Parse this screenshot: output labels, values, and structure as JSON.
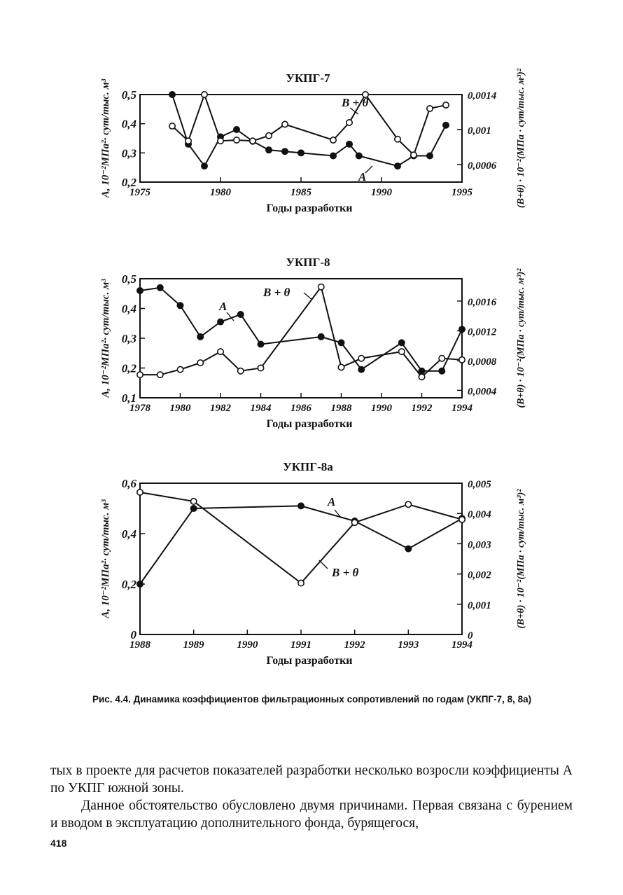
{
  "chart_data": [
    {
      "type": "line",
      "title": "УКПГ-7",
      "xlabel": "Годы разработки",
      "ylabel": "A, 10⁻²МПа²· сут/тыс. м³",
      "y2label": "(B+θ) · 10⁻²(МПа · сут/тыс. м³)²",
      "xlim": [
        1975,
        1995
      ],
      "ylim": [
        0.2,
        0.5
      ],
      "y2lim": [
        0.0004,
        0.0014
      ],
      "x_ticks": [
        "1975",
        "1980",
        "1985",
        "1990",
        "1995"
      ],
      "y_ticks": [
        "0,2",
        "0,3",
        "0,4",
        "0,5"
      ],
      "y2_ticks": [
        "0,0006",
        "0,001",
        "0,0014"
      ],
      "series": [
        {
          "name": "A",
          "axis": "left",
          "marker": "filled",
          "x": [
            1977,
            1978,
            1979,
            1980,
            1981,
            1982,
            1983,
            1984,
            1985,
            1987,
            1988,
            1988.6,
            1991,
            1992,
            1993,
            1994
          ],
          "y": [
            0.5,
            0.33,
            0.255,
            0.355,
            0.38,
            0.34,
            0.31,
            0.305,
            0.3,
            0.29,
            0.33,
            0.29,
            0.255,
            0.29,
            0.29,
            0.395
          ]
        },
        {
          "name": "B + θ",
          "axis": "right",
          "marker": "open",
          "x": [
            1977,
            1978,
            1979,
            1980,
            1981,
            1982,
            1983,
            1984,
            1987,
            1988,
            1989,
            1991,
            1992,
            1993,
            1994
          ],
          "y": [
            0.00104,
            0.00087,
            0.0014,
            0.00087,
            0.00088,
            0.00087,
            0.00093,
            0.00106,
            0.00088,
            0.00108,
            0.0014,
            0.00089,
            0.00071,
            0.00124,
            0.00128
          ]
        }
      ],
      "annotations": [
        "B + θ",
        "A"
      ]
    },
    {
      "type": "line",
      "title": "УКПГ-8",
      "xlabel": "Годы разработки",
      "ylabel": "A, 10⁻²МПа²· сут/тыс. м³",
      "y2label": "(B+θ) · 10⁻²(МПа · сут/тыс. м³)²",
      "xlim": [
        1978,
        1994
      ],
      "ylim": [
        0.1,
        0.5
      ],
      "y2lim": [
        0.0003,
        0.0019
      ],
      "x_ticks": [
        "1978",
        "1980",
        "1982",
        "1984",
        "1986",
        "1988",
        "1990",
        "1992",
        "1994"
      ],
      "y_ticks": [
        "0,1",
        "0,2",
        "0,3",
        "0,4",
        "0,5"
      ],
      "y2_ticks": [
        "0,0004",
        "0,0008",
        "0,0012",
        "0,0016"
      ],
      "series": [
        {
          "name": "A",
          "axis": "left",
          "marker": "filled",
          "x": [
            1978,
            1979,
            1980,
            1981,
            1982,
            1983,
            1984,
            1987,
            1988,
            1989,
            1991,
            1992,
            1993,
            1994
          ],
          "y": [
            0.46,
            0.47,
            0.41,
            0.305,
            0.355,
            0.38,
            0.28,
            0.305,
            0.285,
            0.195,
            0.285,
            0.19,
            0.19,
            0.33
          ]
        },
        {
          "name": "B + θ",
          "axis": "right",
          "marker": "open",
          "x": [
            1978,
            1979,
            1980,
            1981,
            1982,
            1983,
            1984,
            1987,
            1988,
            1989,
            1991,
            1992,
            1993,
            1994
          ],
          "y": [
            0.00061,
            0.00061,
            0.00068,
            0.00077,
            0.00092,
            0.00066,
            0.0007,
            0.00179,
            0.00071,
            0.00083,
            0.00092,
            0.00058,
            0.00083,
            0.00081
          ]
        }
      ],
      "annotations": [
        "B + θ",
        "A"
      ]
    },
    {
      "type": "line",
      "title": "УКПГ-8а",
      "xlabel": "Годы разработки",
      "ylabel": "A, 10⁻²МПа²· сут/тыс. м³",
      "y2label": "(B+θ) · 10⁻²(МПа · сут/тыс. м³)²",
      "xlim": [
        1988,
        1994
      ],
      "ylim": [
        0,
        0.6
      ],
      "y2lim": [
        0,
        0.005
      ],
      "x_ticks": [
        "1988",
        "1989",
        "1990",
        "1991",
        "1992",
        "1993",
        "1994"
      ],
      "y_ticks": [
        "0",
        "0,2",
        "0,4",
        "0,6"
      ],
      "y2_ticks": [
        "0",
        "0,001",
        "0,002",
        "0,003",
        "0,004",
        "0,005"
      ],
      "series": [
        {
          "name": "A",
          "axis": "left",
          "marker": "filled",
          "x": [
            1988,
            1989,
            1991,
            1992,
            1993,
            1994
          ],
          "y": [
            0.2,
            0.5,
            0.51,
            0.45,
            0.34,
            0.46
          ]
        },
        {
          "name": "B + θ",
          "axis": "right",
          "marker": "open",
          "x": [
            1988,
            1989,
            1991,
            1992,
            1993,
            1994
          ],
          "y": [
            0.0047,
            0.0044,
            0.0017,
            0.0037,
            0.0043,
            0.0038
          ]
        }
      ],
      "annotations": [
        "A",
        "B + θ"
      ]
    }
  ],
  "caption": "Рис. 4.4. Динамика коэффициентов фильтрационных сопротивлений по годам (УКПГ-7, 8, 8а)",
  "paragraphs": [
    "тых в проекте для расчетов показателей разработки несколько возросли коэффициенты A по УКПГ южной зоны.",
    "Данное обстоятельство обусловлено двумя причинами. Первая связана с бурением и вводом в эксплуатацию дополнительного фонда, бурящегося,"
  ],
  "page_number": "418"
}
